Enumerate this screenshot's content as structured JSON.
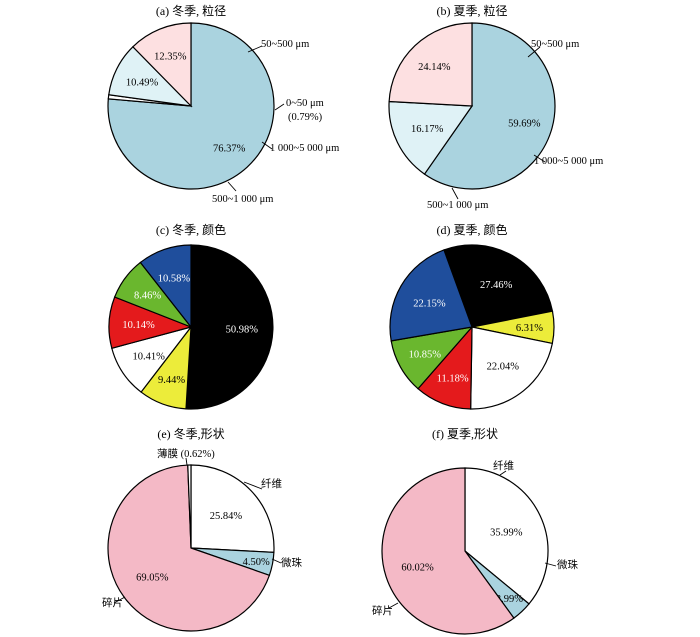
{
  "chart_data": [
    {
      "type": "pie",
      "title": "(a) 冬季, 粒径",
      "slices": [
        {
          "label": "50~500 μm",
          "value": 76.37,
          "value_label": "76.37%",
          "color": "#aad3df",
          "label_color": "#000000"
        },
        {
          "label": "0~50 μm",
          "label2": "(0.79%)",
          "value": 0.79,
          "value_label": "",
          "color": "#ffffff",
          "label_color": "#000000"
        },
        {
          "label": "1 000~5 000 μm",
          "value": 10.49,
          "value_label": "10.49%",
          "color": "#dff2f6",
          "label_color": "#000000"
        },
        {
          "label": "500~1 000 μm",
          "value": 12.35,
          "value_label": "12.35%",
          "color": "#fde0e1",
          "label_color": "#000000"
        }
      ]
    },
    {
      "type": "pie",
      "title": "(b) 夏季, 粒径",
      "slices": [
        {
          "label": "50~500 μm",
          "value": 59.69,
          "value_label": "59.69%",
          "color": "#aad3df",
          "label_color": "#000000"
        },
        {
          "label": "1 000~5 000 μm",
          "value": 16.17,
          "value_label": "16.17%",
          "color": "#dff2f6",
          "label_color": "#000000"
        },
        {
          "label": "500~1 000 μm",
          "value": 24.14,
          "value_label": "24.14%",
          "color": "#fde0e1",
          "label_color": "#000000"
        }
      ]
    },
    {
      "type": "pie",
      "title": "(c) 冬季, 颜色",
      "slices": [
        {
          "label": "",
          "value": 50.98,
          "value_label": "50.98%",
          "color": "#000000",
          "label_color": "#ffffff"
        },
        {
          "label": "",
          "value": 9.44,
          "value_label": "9.44%",
          "color": "#ecec3a",
          "label_color": "#000000"
        },
        {
          "label": "",
          "value": 10.41,
          "value_label": "10.41%",
          "color": "#ffffff",
          "label_color": "#000000"
        },
        {
          "label": "",
          "value": 10.14,
          "value_label": "10.14%",
          "color": "#e41a1c",
          "label_color": "#ffffff"
        },
        {
          "label": "",
          "value": 8.46,
          "value_label": "8.46%",
          "color": "#6ab72e",
          "label_color": "#ffffff"
        },
        {
          "label": "",
          "value": 10.58,
          "value_label": "10.58%",
          "color": "#1f4e9c",
          "label_color": "#ffffff"
        }
      ]
    },
    {
      "type": "pie",
      "title": "(d) 夏季, 颜色",
      "slices": [
        {
          "label": "",
          "value": 27.46,
          "value_label": "27.46%",
          "color": "#000000",
          "label_color": "#ffffff"
        },
        {
          "label": "",
          "value": 6.31,
          "value_label": "6.31%",
          "color": "#ecec3a",
          "label_color": "#000000"
        },
        {
          "label": "",
          "value": 22.04,
          "value_label": "22.04%",
          "color": "#ffffff",
          "label_color": "#000000"
        },
        {
          "label": "",
          "value": 11.18,
          "value_label": "11.18%",
          "color": "#e41a1c",
          "label_color": "#ffffff"
        },
        {
          "label": "",
          "value": 10.85,
          "value_label": "10.85%",
          "color": "#6ab72e",
          "label_color": "#ffffff"
        },
        {
          "label": "",
          "value": 22.15,
          "value_label": "22.15%",
          "color": "#1f4e9c",
          "label_color": "#ffffff"
        }
      ]
    },
    {
      "type": "pie",
      "title": "(e) 冬季,形状",
      "slices": [
        {
          "label": "纤维",
          "value": 25.84,
          "value_label": "25.84%",
          "color": "#ffffff",
          "label_color": "#000000"
        },
        {
          "label": "微珠",
          "value": 4.5,
          "value_label": "4.50%",
          "color": "#aad3df",
          "label_color": "#000000"
        },
        {
          "label": "碎片",
          "value": 69.05,
          "value_label": "69.05%",
          "color": "#f4b9c6",
          "label_color": "#000000"
        },
        {
          "label": "薄膜 (0.62%)",
          "value": 0.62,
          "value_label": "",
          "color": "#ffffff",
          "label_color": "#000000"
        }
      ]
    },
    {
      "type": "pie",
      "title": "(f) 夏季,形状",
      "slices": [
        {
          "label": "纤维",
          "value": 35.99,
          "value_label": "35.99%",
          "color": "#ffffff",
          "label_color": "#000000"
        },
        {
          "label": "微珠",
          "value": 3.99,
          "value_label": "3.99%",
          "color": "#aad3df",
          "label_color": "#000000"
        },
        {
          "label": "碎片",
          "value": 60.02,
          "value_label": "60.02%",
          "color": "#f4b9c6",
          "label_color": "#000000"
        }
      ]
    }
  ]
}
